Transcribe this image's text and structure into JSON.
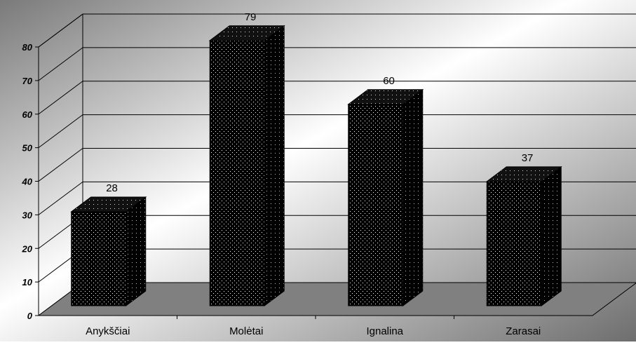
{
  "chart_data": {
    "type": "bar",
    "style": "3d-column",
    "categories": [
      "Anykščiai",
      "Molėtai",
      "Ignalina",
      "Zarasai"
    ],
    "values": [
      28,
      79,
      60,
      37
    ],
    "data_labels": [
      "28",
      "79",
      "60",
      "37"
    ],
    "title": "",
    "xlabel": "",
    "ylabel": "",
    "ylim": [
      0,
      80
    ],
    "yticks": [
      "0",
      "10",
      "20",
      "30",
      "40",
      "50",
      "60",
      "70",
      "80"
    ],
    "grid": true,
    "legend": "none",
    "colors": {
      "bar_fill": "#000000",
      "bar_pattern_dots": "#ffffff",
      "floor": "#808080",
      "gridline": "#000000",
      "background_light": "#ffffff",
      "background_dark": "#7a7a7a"
    }
  }
}
